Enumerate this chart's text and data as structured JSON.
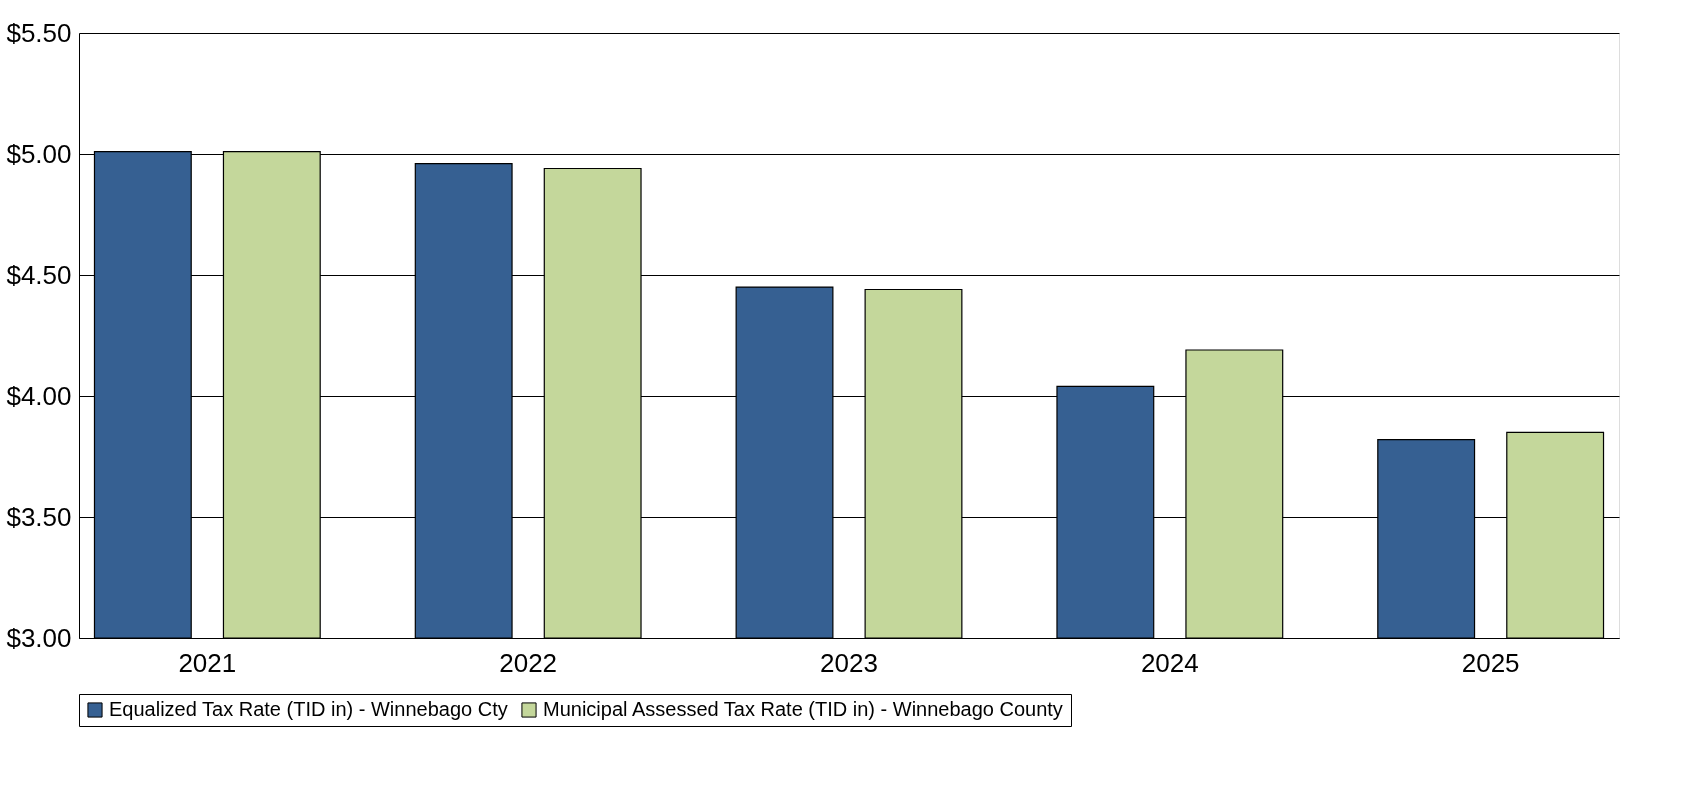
{
  "chart_data": {
    "type": "bar",
    "categories": [
      "2021",
      "2022",
      "2023",
      "2024",
      "2025"
    ],
    "series": [
      {
        "name": "Equalized Tax Rate (TID in) - Winnebago Cty",
        "color": "#366092",
        "values": [
          5.01,
          4.96,
          4.45,
          4.04,
          3.82
        ]
      },
      {
        "name": "Municipal Assessed Tax Rate (TID in) - Winnebago County",
        "color": "#c4d79b",
        "values": [
          5.01,
          4.94,
          4.44,
          4.19,
          3.85
        ]
      }
    ],
    "ylim": [
      3.0,
      5.5
    ],
    "yticks": [
      {
        "value": 3.0,
        "label": "$3.00"
      },
      {
        "value": 3.5,
        "label": "$3.50"
      },
      {
        "value": 4.0,
        "label": "$4.00"
      },
      {
        "value": 4.5,
        "label": "$4.50"
      },
      {
        "value": 5.0,
        "label": "$5.00"
      },
      {
        "value": 5.5,
        "label": "$5.50"
      }
    ],
    "grid": "y",
    "legend": "bottom"
  }
}
